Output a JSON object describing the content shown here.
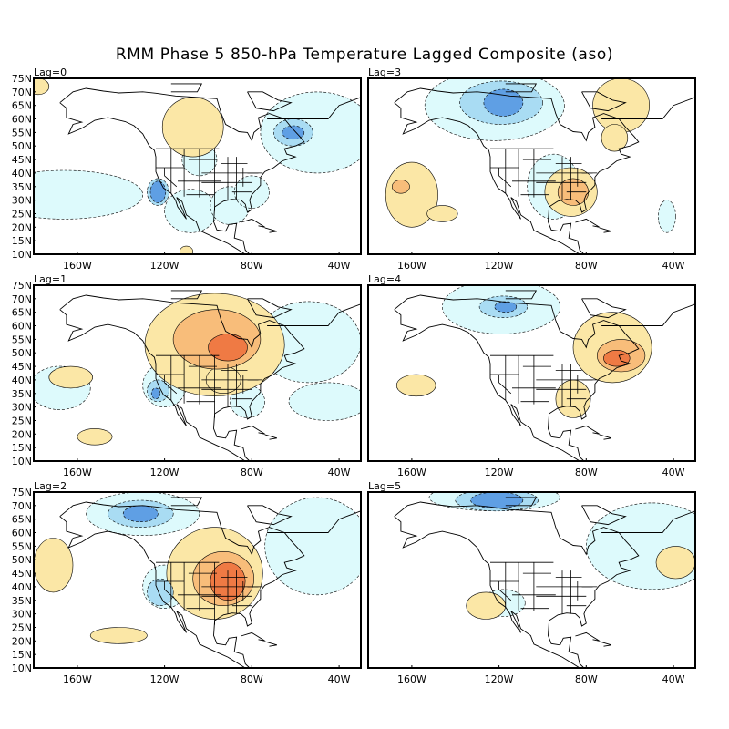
{
  "title": "RMM Phase 5 850-hPa Temperature Lagged Composite (aso)",
  "lat_labels": [
    "75N",
    "70N",
    "65N",
    "60N",
    "55N",
    "50N",
    "45N",
    "40N",
    "35N",
    "30N",
    "25N",
    "20N",
    "15N",
    "10N"
  ],
  "lon_labels": [
    "160W",
    "120W",
    "80W",
    "40W"
  ],
  "colors": {
    "warm1": "#fbe7a6",
    "warm2": "#f8bd7a",
    "warm3": "#ef7a44",
    "cool1": "#ddfafc",
    "cool2": "#a9dcf3",
    "cool3": "#5f9fe4",
    "land_line": "#000000"
  },
  "panels": [
    {
      "lag": "Lag=0"
    },
    {
      "lag": "Lag=3"
    },
    {
      "lag": "Lag=1"
    },
    {
      "lag": "Lag=4"
    },
    {
      "lag": "Lag=2"
    },
    {
      "lag": "Lag=5"
    }
  ]
}
